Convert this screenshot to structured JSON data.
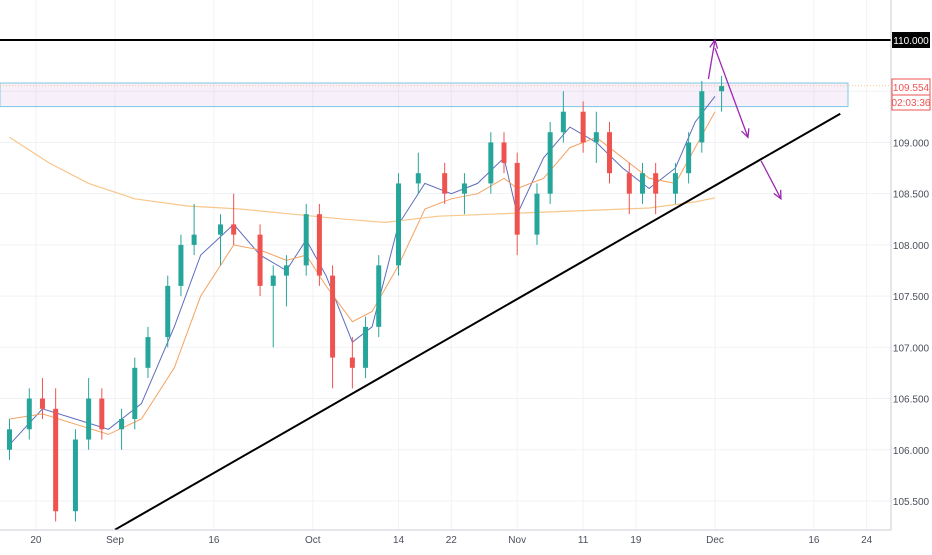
{
  "chart_data": {
    "type": "candlestick",
    "title": "",
    "xlabel": "",
    "ylabel": "",
    "ylim": [
      105.3,
      110.3
    ],
    "grid": true,
    "x_ticks": [
      "20",
      "Sep",
      "16",
      "Oct",
      "14",
      "22",
      "Nov",
      "11",
      "19",
      "Dec",
      "16",
      "24"
    ],
    "y_ticks": [
      "105.500",
      "106.000",
      "106.500",
      "107.000",
      "107.500",
      "108.000",
      "108.500",
      "109.000",
      "109.500",
      "110.000"
    ],
    "price_label": "109.554",
    "countdown_label": "02:03:36",
    "resistance_level": 110.0,
    "resistance_label": "110.000",
    "zone": {
      "low": 109.35,
      "high": 109.58
    },
    "trendline": {
      "from": [
        "2019-09-01",
        105.22
      ],
      "to": [
        "2019-12-20",
        109.28
      ]
    },
    "projection_arrows": [
      {
        "from": [
          "2019-11-30",
          109.62
        ],
        "to": [
          "2019-12-01",
          110.0
        ]
      },
      {
        "from": [
          "2019-12-01",
          109.92
        ],
        "to": [
          "2019-12-06",
          109.05
        ]
      },
      {
        "from": [
          "2019-12-08",
          108.82
        ],
        "to": [
          "2019-12-11",
          108.45
        ]
      }
    ],
    "series": [
      {
        "name": "",
        "style": "ma-fast",
        "color": "#5d6dbb",
        "points": [
          [
            "2019-08-16",
            106.05
          ],
          [
            "2019-08-21",
            106.4
          ],
          [
            "2019-08-26",
            106.3
          ],
          [
            "2019-08-31",
            106.2
          ],
          [
            "2019-09-05",
            106.45
          ],
          [
            "2019-09-10",
            107.2
          ],
          [
            "2019-09-14",
            107.9
          ],
          [
            "2019-09-19",
            108.2
          ],
          [
            "2019-09-23",
            107.9
          ],
          [
            "2019-09-27",
            107.75
          ],
          [
            "2019-09-30",
            108.05
          ],
          [
            "2019-10-03",
            107.7
          ],
          [
            "2019-10-07",
            107.05
          ],
          [
            "2019-10-10",
            107.2
          ],
          [
            "2019-10-14",
            108.2
          ],
          [
            "2019-10-18",
            108.6
          ],
          [
            "2019-10-22",
            108.5
          ],
          [
            "2019-10-26",
            108.6
          ],
          [
            "2019-10-30",
            108.85
          ],
          [
            "2019-11-01",
            108.3
          ],
          [
            "2019-11-05",
            108.85
          ],
          [
            "2019-11-09",
            109.15
          ],
          [
            "2019-11-13",
            109.0
          ],
          [
            "2019-11-17",
            108.75
          ],
          [
            "2019-11-21",
            108.55
          ],
          [
            "2019-11-25",
            108.75
          ],
          [
            "2019-11-28",
            109.2
          ],
          [
            "2019-12-01",
            109.45
          ]
        ]
      },
      {
        "name": "",
        "style": "ma-medium",
        "color": "#f4a261",
        "points": [
          [
            "2019-08-16",
            106.3
          ],
          [
            "2019-08-21",
            106.35
          ],
          [
            "2019-08-26",
            106.25
          ],
          [
            "2019-08-31",
            106.15
          ],
          [
            "2019-09-05",
            106.3
          ],
          [
            "2019-09-10",
            106.8
          ],
          [
            "2019-09-14",
            107.5
          ],
          [
            "2019-09-19",
            108.0
          ],
          [
            "2019-09-23",
            107.95
          ],
          [
            "2019-09-27",
            107.85
          ],
          [
            "2019-09-30",
            107.9
          ],
          [
            "2019-10-03",
            107.6
          ],
          [
            "2019-10-07",
            107.25
          ],
          [
            "2019-10-10",
            107.35
          ],
          [
            "2019-10-14",
            107.8
          ],
          [
            "2019-10-18",
            108.35
          ],
          [
            "2019-10-22",
            108.45
          ],
          [
            "2019-10-26",
            108.5
          ],
          [
            "2019-10-30",
            108.65
          ],
          [
            "2019-11-01",
            108.55
          ],
          [
            "2019-11-05",
            108.65
          ],
          [
            "2019-11-09",
            108.95
          ],
          [
            "2019-11-13",
            109.05
          ],
          [
            "2019-11-17",
            108.85
          ],
          [
            "2019-11-21",
            108.65
          ],
          [
            "2019-11-25",
            108.6
          ],
          [
            "2019-11-28",
            108.95
          ],
          [
            "2019-12-01",
            109.3
          ]
        ]
      },
      {
        "name": "",
        "style": "ma-slow",
        "color": "#f7c78b",
        "points": [
          [
            "2019-08-16",
            109.05
          ],
          [
            "2019-08-22",
            108.8
          ],
          [
            "2019-08-28",
            108.6
          ],
          [
            "2019-09-04",
            108.45
          ],
          [
            "2019-09-12",
            108.38
          ],
          [
            "2019-09-20",
            108.35
          ],
          [
            "2019-09-28",
            108.3
          ],
          [
            "2019-10-06",
            108.25
          ],
          [
            "2019-10-12",
            108.22
          ],
          [
            "2019-10-20",
            108.28
          ],
          [
            "2019-10-28",
            108.3
          ],
          [
            "2019-11-05",
            108.32
          ],
          [
            "2019-11-13",
            108.34
          ],
          [
            "2019-11-21",
            108.36
          ],
          [
            "2019-11-28",
            108.42
          ],
          [
            "2019-12-01",
            108.46
          ]
        ]
      },
      {
        "name": "",
        "style": "candles",
        "color_up": "#26a69a",
        "color_down": "#ef5350",
        "points": [
          [
            "2019-08-16",
            106.0,
            106.3,
            105.9,
            106.2
          ],
          [
            "2019-08-19",
            106.2,
            106.6,
            106.1,
            106.5
          ],
          [
            "2019-08-21",
            106.5,
            106.7,
            106.3,
            106.4
          ],
          [
            "2019-08-23",
            106.4,
            106.6,
            105.3,
            105.4
          ],
          [
            "2019-08-26",
            105.4,
            106.2,
            105.3,
            106.1
          ],
          [
            "2019-08-28",
            106.1,
            106.7,
            106.0,
            106.5
          ],
          [
            "2019-08-30",
            106.5,
            106.6,
            106.1,
            106.2
          ],
          [
            "2019-09-02",
            106.2,
            106.4,
            106.0,
            106.3
          ],
          [
            "2019-09-04",
            106.3,
            106.9,
            106.2,
            106.8
          ],
          [
            "2019-09-06",
            106.8,
            107.2,
            106.7,
            107.1
          ],
          [
            "2019-09-09",
            107.1,
            107.7,
            107.0,
            107.6
          ],
          [
            "2019-09-11",
            107.6,
            108.1,
            107.5,
            108.0
          ],
          [
            "2019-09-13",
            108.0,
            108.4,
            107.9,
            108.1
          ],
          [
            "2019-09-17",
            108.1,
            108.3,
            107.8,
            108.2
          ],
          [
            "2019-09-19",
            108.2,
            108.5,
            108.0,
            108.1
          ],
          [
            "2019-09-23",
            108.1,
            108.2,
            107.5,
            107.6
          ],
          [
            "2019-09-25",
            107.6,
            107.8,
            107.0,
            107.7
          ],
          [
            "2019-09-27",
            107.7,
            107.9,
            107.4,
            107.8
          ],
          [
            "2019-09-30",
            107.8,
            108.4,
            107.7,
            108.3
          ],
          [
            "2019-10-02",
            108.3,
            108.4,
            107.6,
            107.7
          ],
          [
            "2019-10-04",
            107.7,
            107.8,
            106.6,
            106.9
          ],
          [
            "2019-10-07",
            106.9,
            107.1,
            106.6,
            106.8
          ],
          [
            "2019-10-09",
            106.8,
            107.3,
            106.7,
            107.2
          ],
          [
            "2019-10-11",
            107.2,
            107.9,
            107.1,
            107.8
          ],
          [
            "2019-10-14",
            107.8,
            108.7,
            107.7,
            108.6
          ],
          [
            "2019-10-17",
            108.6,
            108.9,
            108.5,
            108.7
          ],
          [
            "2019-10-21",
            108.7,
            108.8,
            108.4,
            108.5
          ],
          [
            "2019-10-24",
            108.5,
            108.7,
            108.3,
            108.6
          ],
          [
            "2019-10-28",
            108.6,
            109.1,
            108.5,
            109.0
          ],
          [
            "2019-10-30",
            109.0,
            109.1,
            108.7,
            108.8
          ],
          [
            "2019-11-01",
            108.8,
            108.9,
            107.9,
            108.1
          ],
          [
            "2019-11-04",
            108.1,
            108.6,
            108.0,
            108.5
          ],
          [
            "2019-11-06",
            108.5,
            109.2,
            108.4,
            109.1
          ],
          [
            "2019-11-08",
            109.1,
            109.5,
            109.0,
            109.3
          ],
          [
            "2019-11-11",
            109.3,
            109.4,
            108.9,
            109.0
          ],
          [
            "2019-11-13",
            109.0,
            109.3,
            108.8,
            109.1
          ],
          [
            "2019-11-15",
            109.1,
            109.2,
            108.6,
            108.7
          ],
          [
            "2019-11-18",
            108.7,
            108.8,
            108.3,
            108.5
          ],
          [
            "2019-11-20",
            108.5,
            108.8,
            108.4,
            108.7
          ],
          [
            "2019-11-22",
            108.7,
            108.8,
            108.3,
            108.5
          ],
          [
            "2019-11-25",
            108.5,
            108.8,
            108.4,
            108.7
          ],
          [
            "2019-11-27",
            108.7,
            109.1,
            108.6,
            109.0
          ],
          [
            "2019-11-29",
            109.0,
            109.6,
            108.9,
            109.5
          ],
          [
            "2019-12-02",
            109.5,
            109.65,
            109.3,
            109.55
          ]
        ]
      }
    ]
  }
}
